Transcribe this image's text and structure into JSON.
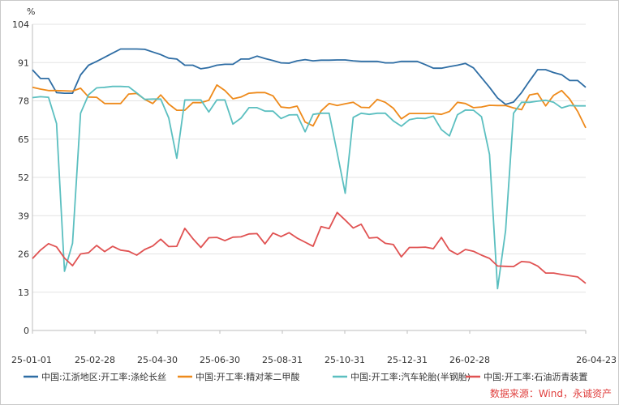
{
  "chart_data": {
    "type": "line",
    "ylabel": "%",
    "ylim": [
      0,
      104
    ],
    "yticks": [
      "104",
      "91",
      "78",
      "65",
      "52",
      "39",
      "26",
      "13",
      "0"
    ],
    "xticks": [
      "25-01-01",
      "25-02-28",
      "25-04-30",
      "25-06-30",
      "25-08-31",
      "25-10-31",
      "25-12-31",
      "26-02-28",
      "26-04-23"
    ],
    "grid": "horizontal",
    "legend_position": "bottom",
    "source": "数据来源：Wind，永诚资产",
    "series": [
      {
        "name": "中国:江浙地区:开工率:涤纶长丝",
        "color": "#2e6da4",
        "values": [
          88.5,
          85.6,
          85.6,
          80.8,
          80.6,
          80.6,
          86.8,
          90.1,
          91.4,
          92.8,
          94.2,
          95.6,
          95.6,
          95.6,
          95.5,
          94.6,
          93.7,
          92.5,
          92.2,
          90.1,
          90.1,
          88.9,
          89.3,
          90.1,
          90.4,
          90.4,
          92.2,
          92.2,
          93.2,
          92.4,
          91.7,
          90.9,
          90.8,
          91.6,
          92,
          91.6,
          91.8,
          91.8,
          91.9,
          91.9,
          91.6,
          91.4,
          91.4,
          91.4,
          90.9,
          90.9,
          91.4,
          91.4,
          91.4,
          90.3,
          89.1,
          89.1,
          89.6,
          90.1,
          90.7,
          89.2,
          85.9,
          82.6,
          79,
          76.8,
          77.6,
          80.8,
          84.8,
          88.6,
          88.6,
          87.6,
          86.9,
          84.9,
          84.9,
          82.6
        ]
      },
      {
        "name": "中国:开工率:精对苯二甲酸",
        "color": "#ee8a1b",
        "values": [
          82.6,
          82,
          81.5,
          81.5,
          81.4,
          81.3,
          82.3,
          79.3,
          79.2,
          77.1,
          77.1,
          77.1,
          80.3,
          80.5,
          78.5,
          77.1,
          80,
          76.9,
          74.8,
          74.8,
          77.4,
          77.4,
          78.2,
          83.4,
          81.5,
          78.7,
          79.3,
          80.6,
          80.8,
          80.8,
          79.7,
          75.9,
          75.6,
          76.2,
          70.8,
          69.5,
          74.6,
          77.1,
          76.4,
          77,
          77.5,
          75.8,
          75.7,
          78.5,
          77.5,
          75.5,
          71.9,
          73.7,
          73.7,
          73.7,
          73.7,
          73.4,
          74.4,
          77.5,
          77.1,
          75.7,
          75.9,
          76.5,
          76.4,
          76.4,
          75.6,
          75,
          80,
          80.5,
          76.3,
          79.9,
          81.5,
          78.6,
          74.4,
          68.8
        ]
      },
      {
        "name": "中国:开工率:汽车轮胎(半钢胎)",
        "color": "#5bbfc0",
        "values": [
          79.1,
          79.4,
          79.2,
          70.3,
          20.1,
          29.6,
          73.8,
          80.1,
          82.4,
          82.6,
          82.9,
          82.9,
          82.8,
          80.7,
          78.5,
          78.6,
          78.6,
          72.2,
          58.5,
          78.3,
          78.3,
          78.3,
          74.2,
          78.3,
          78.3,
          70.1,
          72.1,
          75.7,
          75.7,
          74.5,
          74.5,
          72,
          73.2,
          73.3,
          67.5,
          73.4,
          73.8,
          73.8,
          60.4,
          46.6,
          72.4,
          73.8,
          73.4,
          73.8,
          73.8,
          71.2,
          69.4,
          71.6,
          72.1,
          72,
          72.8,
          68.2,
          66.1,
          73.3,
          74.9,
          74.8,
          72.6,
          59.8,
          14.2,
          33.9,
          73.8,
          77.5,
          77.5,
          77.9,
          78.2,
          77.5,
          75.6,
          76.4,
          76.3,
          76.3
        ]
      },
      {
        "name": "中国:开工率:石油沥青装置",
        "color": "#e05252",
        "values": [
          24.4,
          27.3,
          29.5,
          28.4,
          24.6,
          22,
          26,
          26.4,
          28.9,
          26.8,
          28.6,
          27.3,
          26.9,
          25.6,
          27.5,
          28.7,
          31,
          28.5,
          28.6,
          34.7,
          31.2,
          28.2,
          31.5,
          31.6,
          30.5,
          31.7,
          31.8,
          32.8,
          32.9,
          29.4,
          33.1,
          31.9,
          33.2,
          31.4,
          30,
          28.6,
          35.3,
          34.6,
          40.1,
          37.5,
          34.8,
          36.1,
          31.4,
          31.6,
          29.6,
          29.2,
          25,
          28.2,
          28.2,
          28.3,
          27.8,
          31.6,
          27.3,
          25.8,
          27.5,
          26.9,
          25.6,
          24.5,
          21.9,
          21.8,
          21.7,
          23.4,
          23.2,
          21.9,
          19.5,
          19.5,
          19,
          18.6,
          18.2,
          16
        ]
      }
    ]
  }
}
